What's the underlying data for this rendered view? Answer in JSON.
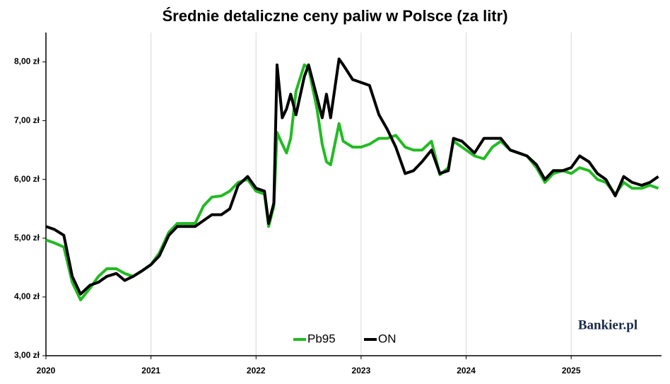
{
  "chart_data": {
    "type": "line",
    "title": "Średnie detaliczne ceny paliw w Polsce (za litr)",
    "watermark": "Bankier.pl",
    "x": [
      2020.0,
      2020.08,
      2020.17,
      2020.25,
      2020.33,
      2020.42,
      2020.5,
      2020.58,
      2020.67,
      2020.75,
      2020.83,
      2020.92,
      2021.0,
      2021.08,
      2021.17,
      2021.25,
      2021.33,
      2021.42,
      2021.5,
      2021.58,
      2021.67,
      2021.75,
      2021.83,
      2021.92,
      2022.0,
      2022.08,
      2022.12,
      2022.17,
      2022.2,
      2022.25,
      2022.29,
      2022.33,
      2022.38,
      2022.46,
      2022.5,
      2022.58,
      2022.63,
      2022.67,
      2022.71,
      2022.79,
      2022.83,
      2022.92,
      2023.0,
      2023.08,
      2023.17,
      2023.25,
      2023.33,
      2023.42,
      2023.5,
      2023.58,
      2023.67,
      2023.75,
      2023.83,
      2023.88,
      2023.96,
      2024.08,
      2024.17,
      2024.25,
      2024.33,
      2024.42,
      2024.5,
      2024.58,
      2024.67,
      2024.75,
      2024.83,
      2024.92,
      2025.0,
      2025.08,
      2025.17,
      2025.25,
      2025.33,
      2025.42,
      2025.5,
      2025.58,
      2025.67,
      2025.75,
      2025.83
    ],
    "series": [
      {
        "name": "Pb95",
        "color": "#22bb22",
        "values": [
          4.97,
          4.92,
          4.85,
          4.25,
          3.95,
          4.15,
          4.35,
          4.48,
          4.48,
          4.4,
          4.35,
          4.45,
          4.55,
          4.75,
          5.1,
          5.25,
          5.25,
          5.25,
          5.55,
          5.7,
          5.72,
          5.8,
          5.95,
          6.0,
          5.8,
          5.75,
          5.2,
          5.55,
          6.8,
          6.6,
          6.45,
          6.7,
          7.5,
          7.95,
          7.9,
          7.2,
          6.6,
          6.3,
          6.25,
          6.95,
          6.65,
          6.55,
          6.55,
          6.6,
          6.7,
          6.7,
          6.75,
          6.55,
          6.5,
          6.5,
          6.65,
          6.08,
          6.2,
          6.65,
          6.55,
          6.4,
          6.35,
          6.55,
          6.65,
          6.5,
          6.45,
          6.4,
          6.2,
          5.95,
          6.1,
          6.15,
          6.1,
          6.2,
          6.15,
          6.0,
          5.95,
          5.75,
          5.95,
          5.85,
          5.85,
          5.9,
          5.85
        ]
      },
      {
        "name": "ON",
        "color": "#000000",
        "values": [
          5.2,
          5.15,
          5.05,
          4.35,
          4.05,
          4.2,
          4.25,
          4.35,
          4.4,
          4.28,
          4.35,
          4.45,
          4.55,
          4.7,
          5.05,
          5.2,
          5.2,
          5.2,
          5.3,
          5.4,
          5.4,
          5.5,
          5.9,
          6.05,
          5.85,
          5.8,
          5.25,
          5.6,
          7.95,
          7.05,
          7.2,
          7.45,
          7.1,
          7.75,
          7.95,
          7.4,
          7.05,
          7.45,
          7.05,
          8.05,
          7.95,
          7.7,
          7.65,
          7.6,
          7.1,
          6.85,
          6.55,
          6.1,
          6.15,
          6.3,
          6.5,
          6.1,
          6.15,
          6.7,
          6.65,
          6.45,
          6.7,
          6.7,
          6.7,
          6.5,
          6.45,
          6.4,
          6.25,
          6.0,
          6.15,
          6.15,
          6.2,
          6.4,
          6.3,
          6.1,
          6.0,
          5.72,
          6.05,
          5.95,
          5.9,
          5.95,
          6.05
        ]
      }
    ],
    "xlim": [
      2020,
      2025.86
    ],
    "xticks": [
      2020,
      2021,
      2022,
      2023,
      2024,
      2025
    ],
    "ylim": [
      3,
      8.5
    ],
    "yticks": [
      {
        "value": 3,
        "label": "3,00 zł"
      },
      {
        "value": 4,
        "label": "4,00 zł"
      },
      {
        "value": 5,
        "label": "5,00 zł"
      },
      {
        "value": 6,
        "label": "6,00 zł"
      },
      {
        "value": 7,
        "label": "7,00 zł"
      },
      {
        "value": 8,
        "label": "8,00 zł"
      }
    ],
    "grid": "x",
    "legend": "bottom"
  }
}
